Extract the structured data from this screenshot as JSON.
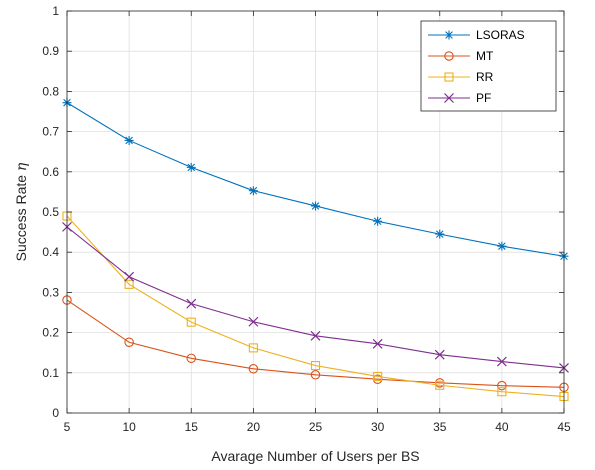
{
  "chart_data": {
    "type": "line",
    "title": "",
    "xlabel": "Avarage Number of Users per BS",
    "ylabel_prefix": "Success Rate ",
    "ylabel_symbol": "η",
    "xlim": [
      5,
      45
    ],
    "ylim": [
      0,
      1
    ],
    "xticks": [
      5,
      10,
      15,
      20,
      25,
      30,
      35,
      40,
      45
    ],
    "yticks": [
      0,
      0.1,
      0.2,
      0.3,
      0.4,
      0.5,
      0.6,
      0.7,
      0.8,
      0.9,
      1
    ],
    "ytick_labels": [
      "0",
      "0.1",
      "0.2",
      "0.3",
      "0.4",
      "0.5",
      "0.6",
      "0.7",
      "0.8",
      "0.9",
      "1"
    ],
    "grid": true,
    "legend_position": "top-right",
    "x": [
      5,
      10,
      15,
      20,
      25,
      30,
      35,
      40,
      45
    ],
    "series": [
      {
        "name": "LSORAS",
        "color": "#0072bd",
        "marker": "asterisk",
        "values": [
          0.772,
          0.678,
          0.611,
          0.553,
          0.515,
          0.477,
          0.445,
          0.415,
          0.39
        ]
      },
      {
        "name": "MT",
        "color": "#d95319",
        "marker": "circle",
        "values": [
          0.281,
          0.176,
          0.136,
          0.11,
          0.095,
          0.084,
          0.075,
          0.068,
          0.064
        ]
      },
      {
        "name": "RR",
        "color": "#edb120",
        "marker": "square",
        "values": [
          0.49,
          0.32,
          0.226,
          0.162,
          0.118,
          0.091,
          0.069,
          0.053,
          0.041
        ]
      },
      {
        "name": "PF",
        "color": "#7e2f8e",
        "marker": "x",
        "values": [
          0.463,
          0.339,
          0.272,
          0.227,
          0.192,
          0.172,
          0.145,
          0.128,
          0.112
        ]
      }
    ]
  }
}
